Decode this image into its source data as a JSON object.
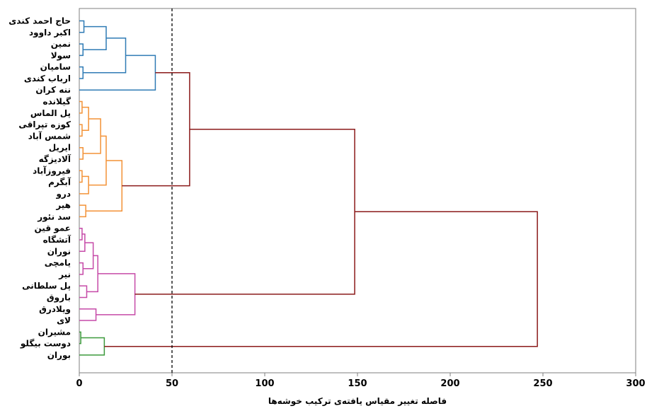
{
  "chart_data": {
    "type": "dendrogram",
    "orientation": "horizontal",
    "xlabel": "فاصله تغییر مقیاس یافته‌ی ترکیب خوشه‌ها",
    "xlim": [
      0,
      300
    ],
    "xticks": [
      0,
      50,
      100,
      150,
      200,
      250,
      300
    ],
    "cut_line": 50,
    "cut_line_style": "dashed",
    "grid": false,
    "leaves": [
      "حاج احمد کندی",
      "اکبر داوود",
      "نمین",
      "سولا",
      "سامیان",
      "ارباب کندی",
      "ننه کران",
      "گیلانده",
      "پل الماس",
      "کوزه تپراقی",
      "شمس آباد",
      "ایریل",
      "آلادیزگه",
      "فیروزآباد",
      "آبگرم",
      "درو",
      "هیر",
      "سد نئور",
      "عمو قین",
      "آتشگاه",
      "نوران",
      "یامچی",
      "نیر",
      "پل سلطانی",
      "باروق",
      "ویلادرق",
      "لای",
      "مشیران",
      "دوست بیگلو",
      "بوران"
    ],
    "cluster_colors": {
      "blue": "#2f7bb5",
      "orange": "#f39237",
      "pink": "#c64aa8",
      "green": "#3c9a3c",
      "dark_red": "#8b1a1a"
    },
    "merges": [
      {
        "a": "L0",
        "b": "L1",
        "height": 2.5,
        "color": "blue"
      },
      {
        "a": "L2",
        "b": "L3",
        "height": 2,
        "color": "blue"
      },
      {
        "a": "M0",
        "b": "M1",
        "height": 14.5,
        "color": "blue"
      },
      {
        "a": "L4",
        "b": "L5",
        "height": 2,
        "color": "blue"
      },
      {
        "a": "M2",
        "b": "M3",
        "height": 25,
        "color": "blue"
      },
      {
        "a": "M4",
        "b": "L6",
        "height": 41,
        "color": "blue"
      },
      {
        "a": "L7",
        "b": "L8",
        "height": 1.5,
        "color": "orange"
      },
      {
        "a": "L9",
        "b": "L10",
        "height": 1.5,
        "color": "orange"
      },
      {
        "a": "M6",
        "b": "M7",
        "height": 5,
        "color": "orange"
      },
      {
        "a": "L11",
        "b": "L12",
        "height": 2,
        "color": "orange"
      },
      {
        "a": "M8",
        "b": "M9",
        "height": 11.5,
        "color": "orange"
      },
      {
        "a": "L13",
        "b": "L14",
        "height": 1.5,
        "color": "orange"
      },
      {
        "a": "M11",
        "b": "L15",
        "height": 5,
        "color": "orange"
      },
      {
        "a": "M10",
        "b": "M12",
        "height": 14.5,
        "color": "orange"
      },
      {
        "a": "L16",
        "b": "L17",
        "height": 3.5,
        "color": "orange"
      },
      {
        "a": "M13",
        "b": "M14",
        "height": 23,
        "color": "orange"
      },
      {
        "a": "L18",
        "b": "L19",
        "height": 1.5,
        "color": "pink"
      },
      {
        "a": "M16",
        "b": "L20",
        "height": 3,
        "color": "pink"
      },
      {
        "a": "L21",
        "b": "L22",
        "height": 2,
        "color": "pink"
      },
      {
        "a": "M17",
        "b": "M18",
        "height": 7.5,
        "color": "pink"
      },
      {
        "a": "L23",
        "b": "L24",
        "height": 4,
        "color": "pink"
      },
      {
        "a": "M19",
        "b": "M20",
        "height": 10,
        "color": "pink"
      },
      {
        "a": "L25",
        "b": "L26",
        "height": 9,
        "color": "pink"
      },
      {
        "a": "M21",
        "b": "M22",
        "height": 30,
        "color": "pink"
      },
      {
        "a": "L27",
        "b": "L28",
        "height": 0.8,
        "color": "green"
      },
      {
        "a": "M24",
        "b": "L29",
        "height": 13.5,
        "color": "green"
      },
      {
        "a": "M5",
        "b": "M15",
        "height": 59.5,
        "color": "dark_red"
      },
      {
        "a": "M26",
        "b": "M23",
        "height": 148.5,
        "color": "dark_red"
      },
      {
        "a": "M27",
        "b": "M25",
        "height": 247,
        "color": "dark_red"
      }
    ]
  }
}
